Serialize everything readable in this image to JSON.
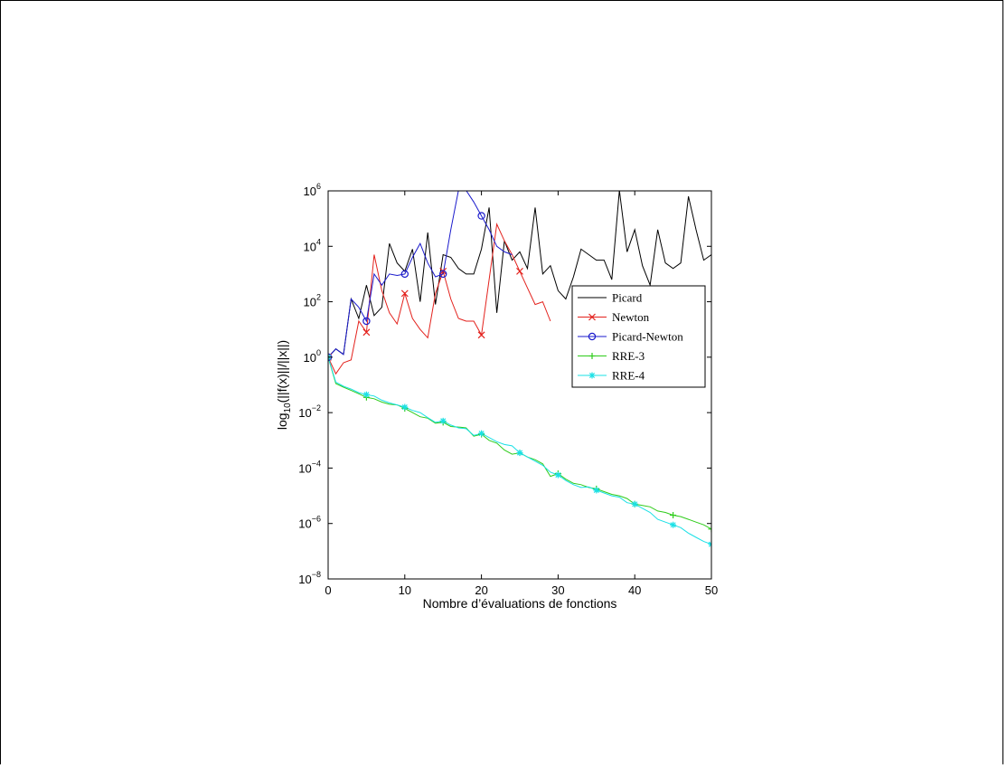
{
  "chart_data": {
    "type": "line",
    "title": "",
    "xlabel": "Nombre d’évaluations de fonctions",
    "ylabel": "log10(||f(x)||/||x||)",
    "ylabel_parts": {
      "base": "log",
      "sub": "10",
      "rest": "(||f(x)||/||x||)"
    },
    "xlim": [
      0,
      50
    ],
    "ylim_log10": [
      -8,
      6
    ],
    "y_scale": "log",
    "grid": false,
    "legend_position": "upper right (inside)",
    "x_ticks": [
      0,
      10,
      20,
      30,
      40,
      50
    ],
    "y_ticks": [
      {
        "exp": 6,
        "base": "10",
        "sup": "6"
      },
      {
        "exp": 4,
        "base": "10",
        "sup": "4"
      },
      {
        "exp": 2,
        "base": "10",
        "sup": "2"
      },
      {
        "exp": 0,
        "base": "10",
        "sup": "0"
      },
      {
        "exp": -2,
        "base": "10",
        "sup": "−2"
      },
      {
        "exp": -4,
        "base": "10",
        "sup": "−4"
      },
      {
        "exp": -6,
        "base": "10",
        "sup": "−6"
      },
      {
        "exp": -8,
        "base": "10",
        "sup": "−8"
      }
    ],
    "series": [
      {
        "name": "Picard",
        "color": "#000000",
        "marker": "none",
        "x": [
          0,
          1,
          2,
          3,
          4,
          5,
          6,
          7,
          8,
          9,
          10,
          11,
          12,
          13,
          14,
          15,
          16,
          17,
          18,
          19,
          20,
          21,
          22,
          23,
          24,
          25,
          26,
          27,
          28,
          29,
          30,
          31,
          32,
          33,
          34,
          35,
          36,
          37,
          38,
          39,
          40,
          41,
          42,
          43,
          44,
          45,
          46,
          47,
          48,
          49,
          50
        ],
        "log10_y": [
          0,
          0.3,
          0.1,
          2.1,
          1.4,
          2.6,
          1.5,
          1.8,
          4.1,
          3.4,
          3.1,
          3.9,
          2.0,
          4.5,
          1.9,
          3.7,
          3.6,
          3.2,
          3.0,
          3.0,
          3.9,
          5.4,
          1.6,
          4.2,
          3.5,
          3.8,
          3.2,
          5.4,
          3.0,
          3.3,
          2.4,
          2.1,
          2.9,
          3.9,
          3.7,
          3.5,
          3.5,
          2.8,
          6.3,
          3.8,
          4.6,
          3.3,
          2.6,
          4.6,
          3.4,
          3.2,
          3.4,
          5.8,
          4.6,
          3.5,
          3.7
        ]
      },
      {
        "name": "Newton",
        "color": "#e3211c",
        "marker": "x",
        "marker_every": 5,
        "x": [
          0,
          1,
          2,
          3,
          4,
          5,
          6,
          7,
          8,
          9,
          10,
          11,
          12,
          13,
          14,
          15,
          16,
          17,
          18,
          19,
          20,
          21,
          22,
          23,
          24,
          25,
          26,
          27,
          28,
          29
        ],
        "log10_y": [
          0,
          -0.6,
          -0.2,
          -0.1,
          1.3,
          0.9,
          3.7,
          2.4,
          1.6,
          1.2,
          2.3,
          1.4,
          1.0,
          0.7,
          2.3,
          3.1,
          2.1,
          1.4,
          1.3,
          1.3,
          0.8,
          2.8,
          4.8,
          4.2,
          3.7,
          3.1,
          2.5,
          1.9,
          2.0,
          1.3
        ]
      },
      {
        "name": "Picard-Newton",
        "color": "#1a1acc",
        "marker": "circle",
        "marker_every": 5,
        "x": [
          0,
          1,
          2,
          3,
          4,
          5,
          6,
          7,
          8,
          9,
          10,
          11,
          12,
          13,
          14,
          15,
          16,
          17,
          18,
          19,
          20,
          21,
          22,
          23,
          24
        ],
        "log10_y": [
          0,
          0.3,
          0.1,
          2.1,
          1.8,
          1.3,
          3.0,
          2.6,
          3.0,
          2.95,
          3.0,
          3.6,
          4.1,
          3.4,
          2.9,
          3.0,
          4.6,
          6.3,
          6.3,
          5.6,
          5.1,
          4.6,
          4.0,
          3.8,
          3.7
        ]
      },
      {
        "name": "RRE-3",
        "color": "#2ecc1a",
        "marker": "plus",
        "marker_every": 5,
        "x": [
          0,
          1,
          2,
          3,
          4,
          5,
          6,
          7,
          8,
          9,
          10,
          11,
          12,
          13,
          14,
          15,
          16,
          17,
          18,
          19,
          20,
          21,
          22,
          23,
          24,
          25,
          26,
          27,
          28,
          29,
          30,
          31,
          32,
          33,
          34,
          35,
          36,
          37,
          38,
          39,
          40,
          41,
          42,
          43,
          44,
          45,
          46,
          47,
          48,
          49,
          50
        ],
        "log10_y": [
          0,
          -0.95,
          -1.08,
          -1.2,
          -1.32,
          -1.45,
          -1.5,
          -1.62,
          -1.7,
          -1.72,
          -1.85,
          -2.0,
          -2.15,
          -2.2,
          -2.38,
          -2.35,
          -2.5,
          -2.52,
          -2.55,
          -2.85,
          -2.78,
          -3.0,
          -3.1,
          -3.35,
          -3.5,
          -3.45,
          -3.6,
          -3.7,
          -3.85,
          -4.3,
          -4.2,
          -4.4,
          -4.55,
          -4.6,
          -4.7,
          -4.75,
          -4.85,
          -4.95,
          -5.0,
          -5.1,
          -5.3,
          -5.35,
          -5.4,
          -5.55,
          -5.6,
          -5.7,
          -5.75,
          -5.85,
          -5.95,
          -6.05,
          -6.2
        ]
      },
      {
        "name": "RRE-4",
        "color": "#1ae0e6",
        "marker": "star",
        "marker_every": 5,
        "x": [
          0,
          1,
          2,
          3,
          4,
          5,
          6,
          7,
          8,
          9,
          10,
          11,
          12,
          13,
          14,
          15,
          16,
          17,
          18,
          19,
          20,
          21,
          22,
          23,
          24,
          25,
          26,
          27,
          28,
          29,
          30,
          31,
          32,
          33,
          34,
          35,
          36,
          37,
          38,
          39,
          40,
          41,
          42,
          43,
          44,
          45,
          46,
          47,
          48,
          49,
          50
        ],
        "log10_y": [
          0,
          -0.9,
          -1.05,
          -1.15,
          -1.28,
          -1.35,
          -1.4,
          -1.55,
          -1.65,
          -1.72,
          -1.8,
          -1.92,
          -2.0,
          -2.18,
          -2.35,
          -2.3,
          -2.45,
          -2.55,
          -2.58,
          -2.82,
          -2.75,
          -2.9,
          -3.05,
          -3.15,
          -3.2,
          -3.45,
          -3.6,
          -3.75,
          -3.9,
          -4.15,
          -4.25,
          -4.45,
          -4.6,
          -4.7,
          -4.68,
          -4.8,
          -4.9,
          -5.0,
          -5.05,
          -5.25,
          -5.3,
          -5.45,
          -5.6,
          -5.85,
          -5.95,
          -6.05,
          -6.15,
          -6.35,
          -6.5,
          -6.65,
          -6.75
        ]
      }
    ]
  }
}
